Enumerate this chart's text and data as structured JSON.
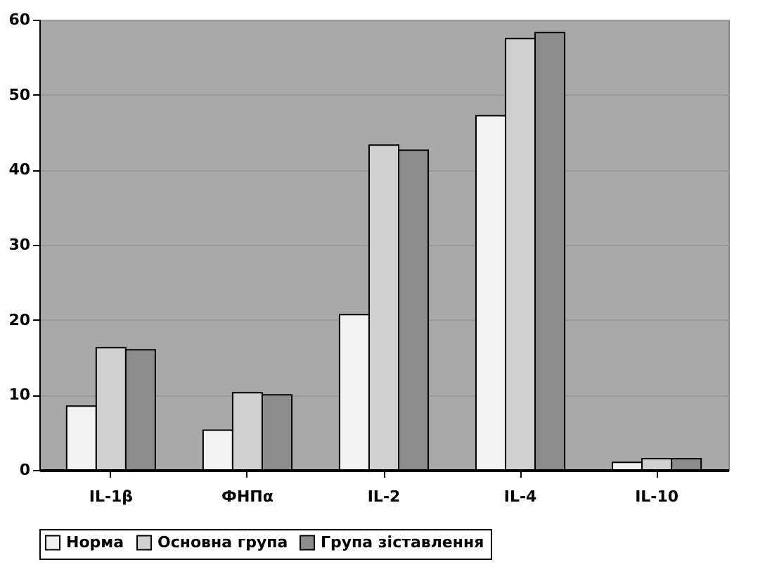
{
  "chart_data": {
    "type": "bar",
    "categories": [
      "IL-1β",
      "ФНПα",
      "IL-2",
      "IL-4",
      "IL-10"
    ],
    "series": [
      {
        "name": "Норма",
        "color": "#f2f2f2",
        "values": [
          8.5,
          5.3,
          20.7,
          47.2,
          1
        ]
      },
      {
        "name": "Основна група",
        "color": "#d0d0d0",
        "values": [
          16.3,
          10.3,
          43.3,
          57.5,
          1.5
        ]
      },
      {
        "name": "Група зіставлення",
        "color": "#8c8c8c",
        "values": [
          16,
          10,
          42.6,
          58.3,
          1.5
        ]
      }
    ],
    "ylim": [
      0,
      60
    ],
    "yticks": [
      0,
      10,
      20,
      30,
      40,
      50,
      60
    ],
    "grid": "y",
    "legend": "bottom"
  }
}
